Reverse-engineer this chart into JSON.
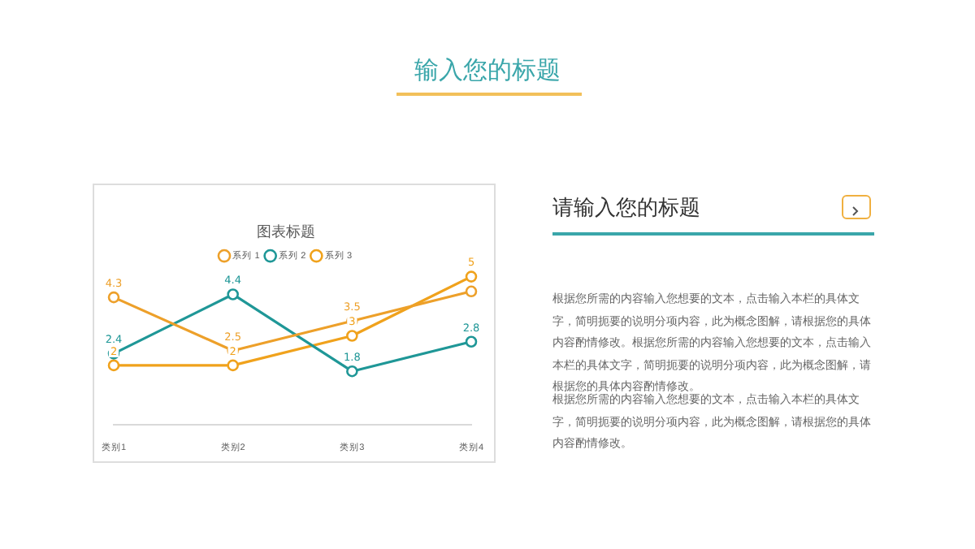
{
  "chart_data": {
    "type": "line",
    "title": "图表标题",
    "categories": [
      "类别1",
      "类别2",
      "类别3",
      "类别4"
    ],
    "series": [
      {
        "name": "系列 1",
        "color": "#eda02a",
        "values": [
          4.3,
          2.5,
          3.5,
          4.5
        ],
        "value_labels": [
          "4.3",
          "2.5",
          "3.5",
          null
        ]
      },
      {
        "name": "系列 2",
        "color": "#1f9797",
        "values": [
          2.4,
          4.4,
          1.8,
          2.8
        ],
        "value_labels": [
          "2.4",
          "4.4",
          "1.8",
          "2.8"
        ]
      },
      {
        "name": "系列 3",
        "color": "#f0a21c",
        "values": [
          2,
          2,
          3,
          5
        ],
        "value_labels": [
          "2",
          "2",
          "3",
          "5"
        ]
      }
    ],
    "legend": "top",
    "marker": "circle",
    "line_style": "solid",
    "grid": false,
    "annotations": [
      "输入您的标题",
      "请输入您的标题",
      "根据您所需的内容输入您想要的文本，点击输入本栏的具体文字，简明扼要的说明分项内容，此为概念图解，请根据您的具体内容酌情修改。根据您所需的内容输入您想要的文本，点击输入本栏的具体文字，简明扼要的说明分项内容，此为概念图解，请根据您的具体内容酌情修改。",
      "根据您所需的内容输入您想要的文本，点击输入本栏的具体文字，简明扼要的说明分项内容，此为概念图解，请根据您的具体内容酌情修改。"
    ]
  }
}
